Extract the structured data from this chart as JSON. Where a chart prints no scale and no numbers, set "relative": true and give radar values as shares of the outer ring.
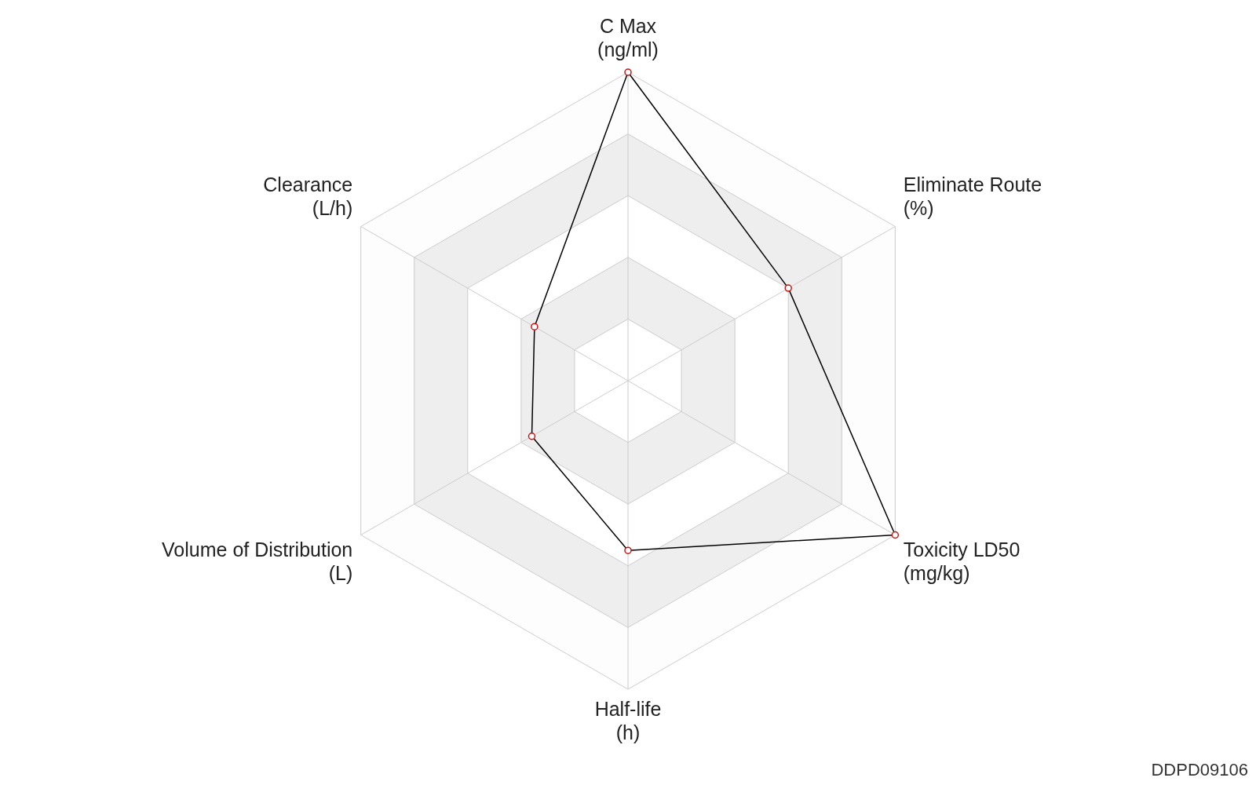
{
  "chart_data": {
    "type": "radar",
    "relative": true,
    "grid": true,
    "legend": false,
    "marker": "circle",
    "line_style": "solid",
    "categories": [
      "C Max\n(ng/ml)",
      "Eliminate Route\n(%)",
      "Toxicity LD50\n(mg/kg)",
      "Half-life\n(h)",
      "Volume of Distribution\n(L)",
      "Clearance\n(L/h)"
    ],
    "series": [
      {
        "color": "#000000",
        "values": [
          1,
          0.6,
          1,
          0.55,
          0.36,
          0.35
        ]
      }
    ],
    "annotations": [
      "DDPD09106"
    ]
  }
}
